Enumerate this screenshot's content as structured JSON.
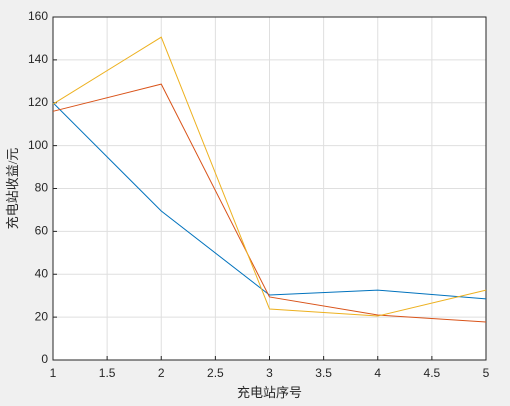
{
  "chart_data": {
    "type": "line",
    "xlabel": "充电站序号",
    "ylabel": "充电站收益/元",
    "x": [
      1,
      2,
      3,
      4,
      5
    ],
    "series": [
      {
        "color": "#0072bd",
        "values": [
          120,
          69.5,
          30.3,
          32.6,
          28.5
        ]
      },
      {
        "color": "#d95319",
        "values": [
          116,
          128.7,
          29.4,
          21,
          17.7
        ]
      },
      {
        "color": "#edb120",
        "values": [
          119.4,
          150.6,
          23.8,
          20.5,
          32.6
        ]
      }
    ],
    "xlim": [
      1,
      5
    ],
    "xticks": [
      1,
      1.5,
      2,
      2.5,
      3,
      3.5,
      4,
      4.5,
      5
    ],
    "ylim": [
      0,
      160
    ],
    "yticks": [
      0,
      20,
      40,
      60,
      80,
      100,
      120,
      140,
      160
    ],
    "grid": true
  }
}
